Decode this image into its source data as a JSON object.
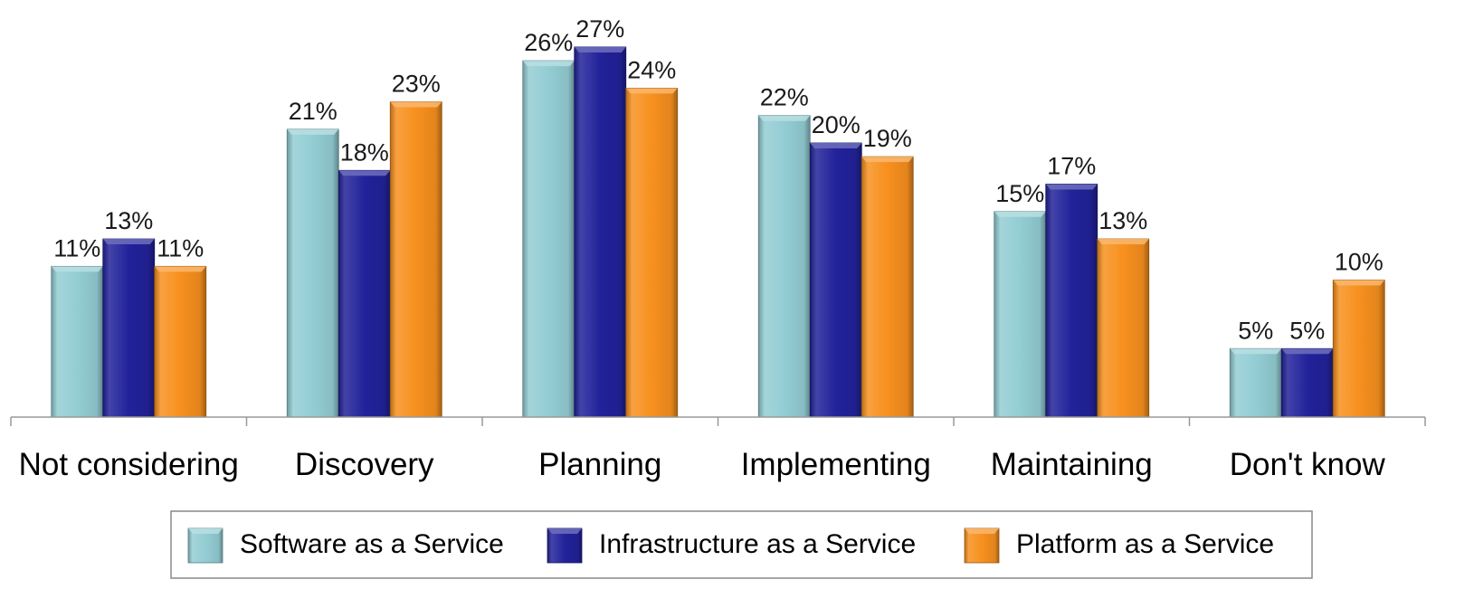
{
  "chart_data": {
    "type": "bar",
    "categories": [
      "Not considering",
      "Discovery",
      "Planning",
      "Implementing",
      "Maintaining",
      "Don't know"
    ],
    "series": [
      {
        "name": "Software as a Service",
        "values": [
          11,
          21,
          26,
          22,
          15,
          5
        ],
        "color": "#93CDD4"
      },
      {
        "name": "Infrastructure as a Service",
        "values": [
          13,
          18,
          27,
          20,
          17,
          5
        ],
        "color": "#22229A"
      },
      {
        "name": "Platform as a Service",
        "values": [
          11,
          23,
          24,
          19,
          13,
          10
        ],
        "color": "#F7901E"
      }
    ],
    "value_suffix": "%",
    "ylim": [
      0,
      30
    ],
    "grid": false,
    "legend_position": "bottom"
  }
}
